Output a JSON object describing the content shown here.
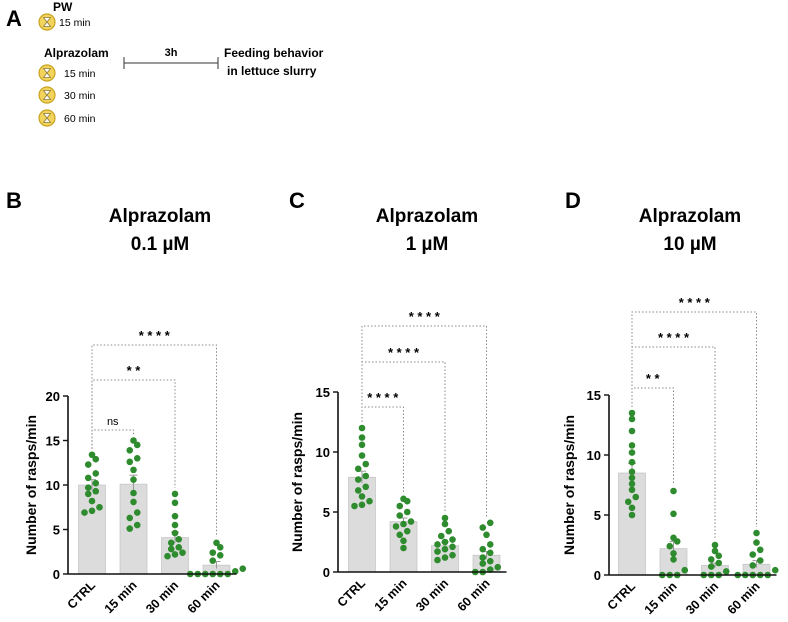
{
  "protocol": {
    "panel_letter": "A",
    "control_label": "PW",
    "control_time": "15 min",
    "drug_label": "Alprazolam",
    "drug_times": [
      "15 min",
      "30 min",
      "60 min"
    ],
    "duration_label": "3h",
    "outcome_line1": "Feeding behavior",
    "outcome_line2": "in lettuce slurry"
  },
  "colors": {
    "dot": "#2e8b2e",
    "bar": "#dcdcdc",
    "bar_edge": "#bdbdbd",
    "icon_fill": "#f2d45c",
    "icon_edge": "#c9a21f",
    "text": "#111111",
    "bracket": "#888888"
  },
  "chart_data": [
    {
      "type": "bar",
      "panel": "B",
      "title_line1": "Alprazolam",
      "title_line2": "0.1 µM",
      "ylabel": "Number of rasps/min",
      "ylim": [
        0,
        20
      ],
      "yticks": [
        "0",
        "5",
        "10",
        "15",
        "20"
      ],
      "tick_values": [
        0,
        5,
        10,
        15,
        20
      ],
      "categories": [
        "CTRL",
        "15 min",
        "30 min",
        "60 min"
      ],
      "means": [
        10.0,
        10.1,
        4.1,
        1.0
      ],
      "sem": [
        0.6,
        1.0,
        0.6,
        0.4
      ],
      "points": [
        [
          6.9,
          7.1,
          7.5,
          8.2,
          9.0,
          9.3,
          9.7,
          10.2,
          10.8,
          11.3,
          12.3,
          12.9,
          13.4
        ],
        [
          5.1,
          5.5,
          6.3,
          6.9,
          8.1,
          9.1,
          10.6,
          11.7,
          12.6,
          13.0,
          13.9,
          14.5,
          15.0
        ],
        [
          2.0,
          2.2,
          2.4,
          2.8,
          3.0,
          3.5,
          3.9,
          4.6,
          5.5,
          6.5,
          8.0,
          9.0
        ],
        [
          0.0,
          0.0,
          0.0,
          0.0,
          0.0,
          0.0,
          0.3,
          0.6,
          1.5,
          2.1,
          2.4,
          3.0,
          3.5
        ]
      ],
      "comparisons": [
        {
          "target": 1,
          "label": "ns"
        },
        {
          "target": 2,
          "label": "* *"
        },
        {
          "target": 3,
          "label": "* * * *"
        }
      ]
    },
    {
      "type": "bar",
      "panel": "C",
      "title_line1": "Alprazolam",
      "title_line2": "1 µM",
      "ylabel": "Number of rasps/min",
      "ylim": [
        0,
        15
      ],
      "yticks": [
        "0",
        "5",
        "10",
        "15"
      ],
      "tick_values": [
        0,
        5,
        10,
        15
      ],
      "categories": [
        "CTRL",
        "15 min",
        "30 min",
        "60 min"
      ],
      "means": [
        7.9,
        4.2,
        2.2,
        1.4
      ],
      "sem": [
        0.5,
        0.3,
        0.3,
        0.3
      ],
      "points": [
        [
          5.5,
          5.6,
          5.9,
          6.3,
          6.8,
          7.1,
          7.7,
          8.0,
          8.6,
          9.0,
          9.7,
          10.6,
          11.2,
          12.0
        ],
        [
          2.0,
          2.6,
          3.1,
          3.4,
          3.8,
          4.0,
          4.2,
          4.7,
          5.0,
          5.5,
          5.9,
          6.1
        ],
        [
          1.0,
          1.2,
          1.4,
          1.7,
          1.9,
          2.1,
          2.3,
          2.5,
          2.7,
          3.0,
          3.4,
          4.0,
          4.5
        ],
        [
          0.0,
          0.0,
          0.2,
          0.4,
          0.7,
          0.9,
          1.2,
          1.6,
          1.9,
          2.3,
          3.1,
          3.7,
          4.1
        ]
      ],
      "comparisons": [
        {
          "target": 1,
          "label": "* * * *"
        },
        {
          "target": 2,
          "label": "* * * *"
        },
        {
          "target": 3,
          "label": "* * * *"
        }
      ]
    },
    {
      "type": "bar",
      "panel": "D",
      "title_line1": "Alprazolam",
      "title_line2": "10 µM",
      "ylabel": "Number of rasps/min",
      "ylim": [
        0,
        15
      ],
      "yticks": [
        "0",
        "5",
        "10",
        "15"
      ],
      "tick_values": [
        0,
        5,
        10,
        15
      ],
      "categories": [
        "CTRL",
        "15 min",
        "30 min",
        "60 min"
      ],
      "means": [
        8.5,
        2.2,
        0.8,
        0.9
      ],
      "sem": [
        0.8,
        0.6,
        0.2,
        0.3
      ],
      "points": [
        [
          5.0,
          5.6,
          6.1,
          6.5,
          7.1,
          7.6,
          8.1,
          8.6,
          9.4,
          10.2,
          10.8,
          12.0,
          13.0,
          13.5
        ],
        [
          0.0,
          0.0,
          0.0,
          0.4,
          1.3,
          1.8,
          2.4,
          2.8,
          3.1,
          5.1,
          7.0
        ],
        [
          0.0,
          0.0,
          0.0,
          0.3,
          0.7,
          1.0,
          1.3,
          1.6,
          2.0,
          2.5
        ],
        [
          0.0,
          0.0,
          0.0,
          0.0,
          0.0,
          0.4,
          0.8,
          1.2,
          1.7,
          2.1,
          2.7,
          3.5
        ]
      ],
      "comparisons": [
        {
          "target": 1,
          "label": "* *"
        },
        {
          "target": 2,
          "label": "* * * *"
        },
        {
          "target": 3,
          "label": "* * * *"
        }
      ]
    }
  ]
}
